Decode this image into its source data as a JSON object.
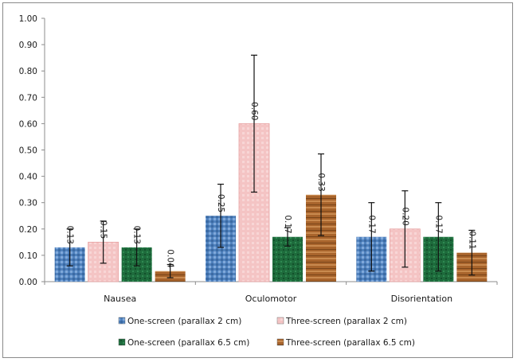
{
  "chart_data": {
    "type": "bar",
    "title": "",
    "xlabel": "",
    "ylabel": "",
    "ylim": [
      0,
      1.0
    ],
    "yticks": [
      "0.00",
      "0.10",
      "0.20",
      "0.30",
      "0.40",
      "0.50",
      "0.60",
      "0.70",
      "0.80",
      "0.90",
      "1.00"
    ],
    "grid": false,
    "legend_position": "bottom",
    "categories": [
      "Nausea",
      "Oculomotor",
      "Disorientation"
    ],
    "series": [
      {
        "name": "One-screen (parallax 2 cm)",
        "color": "#4f81bd",
        "values": [
          0.13,
          0.25,
          0.17
        ],
        "labels": [
          "0.13",
          "0.25",
          "0.17"
        ],
        "errors": [
          0.07,
          0.12,
          0.13
        ]
      },
      {
        "name": "Three-screen (parallax 2 cm)",
        "color": "#f2b8b8",
        "values": [
          0.15,
          0.6,
          0.2
        ],
        "labels": [
          "0.15",
          "0.60",
          "0.20"
        ],
        "errors": [
          0.08,
          0.26,
          0.145
        ]
      },
      {
        "name": "One-screen (parallax 6.5 cm)",
        "color": "#1e6b3c",
        "values": [
          0.13,
          0.17,
          0.17
        ],
        "labels": [
          "0.13",
          "0.17",
          "0.17"
        ],
        "errors": [
          0.07,
          0.035,
          0.13
        ]
      },
      {
        "name": "Three-screen (parallax 6.5 cm)",
        "color": "#a8642c",
        "values": [
          0.04,
          0.33,
          0.11
        ],
        "labels": [
          "0.04",
          "0.33",
          "0.11"
        ],
        "errors": [
          0.025,
          0.155,
          0.085
        ]
      }
    ]
  }
}
